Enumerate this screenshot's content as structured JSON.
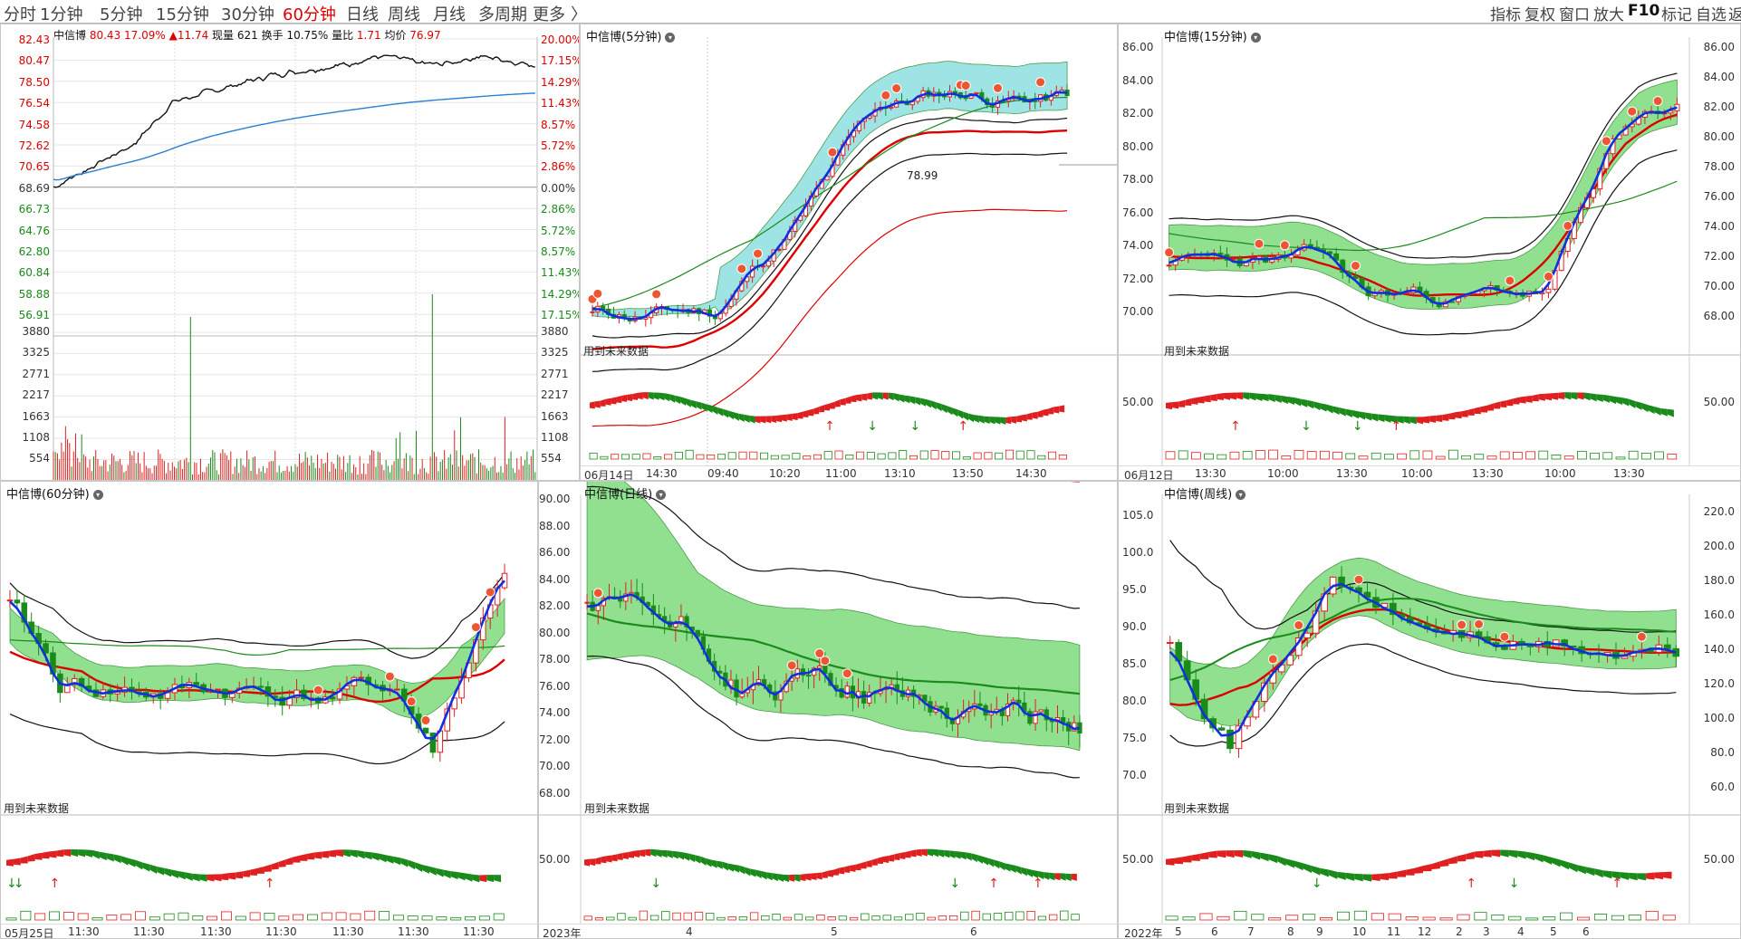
{
  "topbar": {
    "periods": [
      "分时",
      "1分钟",
      "5分钟",
      "15分钟",
      "30分钟",
      "60分钟",
      "日线",
      "周线",
      "月线",
      "多周期",
      "更多"
    ],
    "active_period": "60分钟",
    "more_chevron": "〉",
    "tools": [
      "指标",
      "复权",
      "窗口",
      "放大",
      "F10",
      "标记",
      "自选",
      "返回"
    ]
  },
  "intraday": {
    "name": "中信博",
    "price": "80.43",
    "pct": "17.09%",
    "change": "▲11.74",
    "vol_label": "现量",
    "vol": "621",
    "turn_label": "换手",
    "turn": "10.75%",
    "ratio_label": "量比",
    "ratio": "1.71",
    "avg_label": "均价",
    "avg": "76.97",
    "price_ticks": [
      "82.43",
      "80.47",
      "78.50",
      "76.54",
      "74.58",
      "72.62",
      "70.65",
      "68.69",
      "66.73",
      "64.76",
      "62.80",
      "60.84",
      "58.88",
      "56.91"
    ],
    "pct_ticks": [
      "20.00%",
      "17.15%",
      "14.29%",
      "11.43%",
      "8.57%",
      "5.72%",
      "2.86%",
      "0.00%",
      "2.86%",
      "5.72%",
      "8.57%",
      "11.43%",
      "14.29%",
      "17.15%"
    ],
    "vol_ticks": [
      "3880",
      "3325",
      "2771",
      "2217",
      "1663",
      "1108",
      "554"
    ]
  },
  "panels": {
    "p5": {
      "title": "中信博(5分钟)",
      "nodata": "用到未来数据",
      "label": "78.99",
      "axis": [],
      "osc": [],
      "dates": [
        "06月14日",
        "14:30",
        "09:40",
        "10:20",
        "11:00",
        "13:10",
        "13:50",
        "14:30"
      ]
    },
    "p15": {
      "title": "中信博(15分钟)",
      "nodata": "用到未来数据",
      "axis": [
        "86.00",
        "84.00",
        "82.00",
        "80.00",
        "78.00",
        "76.00",
        "74.00",
        "72.00",
        "70.00"
      ],
      "axis_r": [
        "86.00",
        "84.00",
        "82.00",
        "80.00",
        "78.00",
        "76.00",
        "74.00",
        "72.00",
        "70.00",
        "68.00"
      ],
      "osc": [
        "50.00"
      ],
      "osc_r": [
        "50.00"
      ],
      "dates": [
        "06月12日",
        "13:30",
        "10:00",
        "13:30",
        "10:00",
        "13:30",
        "10:00",
        "13:30"
      ]
    },
    "p60": {
      "title": "中信博(60分钟)",
      "nodata": "用到未来数据",
      "axis": [],
      "osc": [],
      "dates": [
        "05月25日",
        "11:30",
        "11:30",
        "11:30",
        "11:30",
        "11:30",
        "11:30",
        "11:30"
      ]
    },
    "pday": {
      "title": "中信博(日线)",
      "nodata": "用到未来数据",
      "axis": [
        "90.00",
        "88.00",
        "86.00",
        "84.00",
        "82.00",
        "80.00",
        "78.00",
        "76.00",
        "74.00",
        "72.00",
        "70.00",
        "68.00"
      ],
      "osc": [
        "50.00"
      ],
      "dates": [
        "2023年",
        "4",
        "5",
        "6"
      ]
    },
    "pweek": {
      "title": "中信博(周线)",
      "nodata": "用到未来数据",
      "axis": [
        "105.0",
        "100.0",
        "95.0",
        "90.0",
        "85.0",
        "80.0",
        "75.0",
        "70.0"
      ],
      "axis_r": [
        "220.0",
        "200.0",
        "180.0",
        "160.0",
        "140.0",
        "120.0",
        "100.0",
        "80.0",
        "60.0"
      ],
      "osc": [
        "50.00"
      ],
      "osc_r": [
        "50.00"
      ],
      "dates": [
        "2022年",
        "5",
        "6",
        "7",
        "8",
        "9",
        "10",
        "11",
        "12",
        "2",
        "3",
        "4",
        "5",
        "6"
      ]
    }
  },
  "colors": {
    "up": "#e02020",
    "down": "#1a8a1a",
    "line_blue": "#1030e0",
    "price_line": "#111111",
    "avg_line": "#2a7fd0",
    "band_green": "#7ddb7d",
    "band_cyan": "#8fe0e0"
  }
}
